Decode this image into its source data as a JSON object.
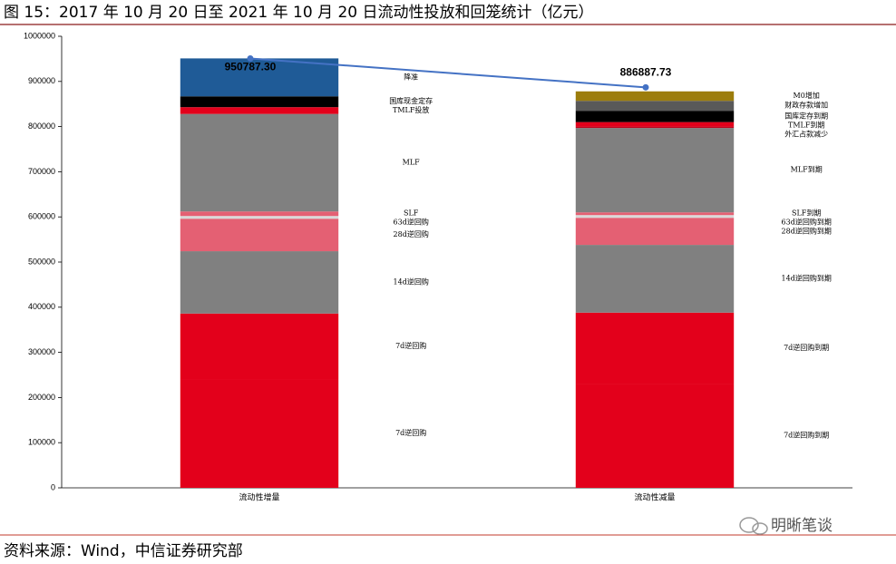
{
  "chart_data": {
    "type": "stacked_bar",
    "title": "图 15：2017 年 10 月 20 日至 2021 年 10 月 20 日流动性投放和回笼统计（亿元）",
    "source": "资料来源：Wind，中信证券研究部",
    "watermark": "明晰笔谈",
    "ylim": [
      0,
      1000000
    ],
    "yticks": [
      0,
      100000,
      200000,
      300000,
      400000,
      500000,
      600000,
      700000,
      800000,
      900000,
      1000000
    ],
    "bars": [
      {
        "category": "流动性增量",
        "segments": [
          {
            "label": "7d逆回购",
            "color": "#e3001b",
            "value": 240000
          },
          {
            "label": "7d逆回购",
            "color": "#e3001b",
            "value": 146000
          },
          {
            "label": "14d逆回购",
            "color": "#808080",
            "value": 138000
          },
          {
            "label": "28d逆回购",
            "color": "#e46073",
            "value": 72000
          },
          {
            "label": "63d逆回购",
            "color": "#d9d9d9",
            "value": 6000
          },
          {
            "label": "SLF",
            "color": "#e46073",
            "value": 10000
          },
          {
            "label": "MLF",
            "color": "#808080",
            "value": 216000
          },
          {
            "label": "TMLF投放",
            "color": "#e3001b",
            "value": 15000
          },
          {
            "label": "国库现金定存",
            "color": "#000000",
            "value": 24000
          },
          {
            "label": "降准",
            "color": "#1f5b97",
            "value": 84000
          }
        ]
      },
      {
        "category": "流动性减量",
        "segments": [
          {
            "label": "7d逆回购到期",
            "color": "#e3001b",
            "value": 230000
          },
          {
            "label": "7d逆回购到期",
            "color": "#e3001b",
            "value": 158000
          },
          {
            "label": "14d逆回购到期",
            "color": "#808080",
            "value": 150000
          },
          {
            "label": "28d逆回购到期",
            "color": "#e46073",
            "value": 60000
          },
          {
            "label": "63d逆回购到期",
            "color": "#d9d9d9",
            "value": 6000
          },
          {
            "label": "SLF到期",
            "color": "#e46073",
            "value": 6000
          },
          {
            "label": "MLF到期",
            "color": "#808080",
            "value": 187000
          },
          {
            "label": "外汇占款减少",
            "color": "#c0001a",
            "value": 3000
          },
          {
            "label": "TMLF到期",
            "color": "#e3001b",
            "value": 10000
          },
          {
            "label": "国库定存到期",
            "color": "#000000",
            "value": 25000
          },
          {
            "label": "财政存款增加",
            "color": "#595959",
            "value": 22000
          },
          {
            "label": "M0增加",
            "color": "#9c7d0c",
            "value": 21000
          }
        ]
      }
    ],
    "line": {
      "color": "#4472c4",
      "values": [
        950787.3,
        886887.73
      ],
      "value_labels": [
        "950787.30",
        "886887.73"
      ]
    }
  }
}
